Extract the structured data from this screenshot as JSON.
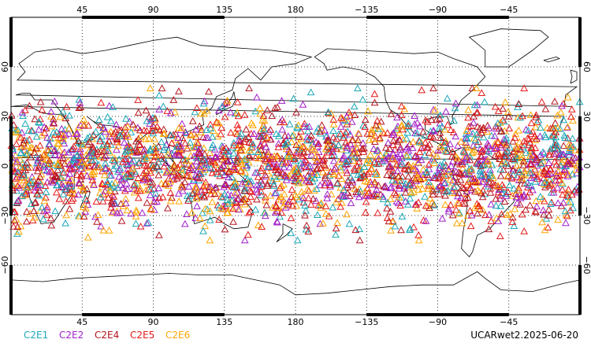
{
  "map": {
    "projection": "cylindrical-equidistant",
    "lon_range": [
      0,
      360
    ],
    "lat_range": [
      -90,
      90
    ],
    "gridlines": "dotted",
    "top_ticks": [
      "45",
      "90",
      "135",
      "180",
      "−135",
      "−90",
      "−45"
    ],
    "bottom_ticks": [
      "45",
      "90",
      "135",
      "180",
      "−135",
      "−90",
      "−45"
    ],
    "left_ticks": [
      "60",
      "30",
      "0",
      "−30",
      "−60"
    ],
    "right_ticks": [
      "60",
      "30",
      "0",
      "−30",
      "−60"
    ],
    "tick_lons": [
      45,
      90,
      135,
      180,
      225,
      270,
      315
    ],
    "tick_lats": [
      60,
      30,
      0,
      -30,
      -60
    ],
    "marker_shape": "open-triangle",
    "marker_lat_band": [
      -45,
      47
    ]
  },
  "legend": {
    "items": [
      {
        "label": "C2E1",
        "color": "#1aa8b8"
      },
      {
        "label": "C2E2",
        "color": "#a01ec8"
      },
      {
        "label": "C2E4",
        "color": "#b4141e"
      },
      {
        "label": "C2E5",
        "color": "#e41a1a"
      },
      {
        "label": "C2E6",
        "color": "#ffa500"
      }
    ]
  },
  "footer": {
    "title": "UCARwet2.2025-06-20"
  }
}
